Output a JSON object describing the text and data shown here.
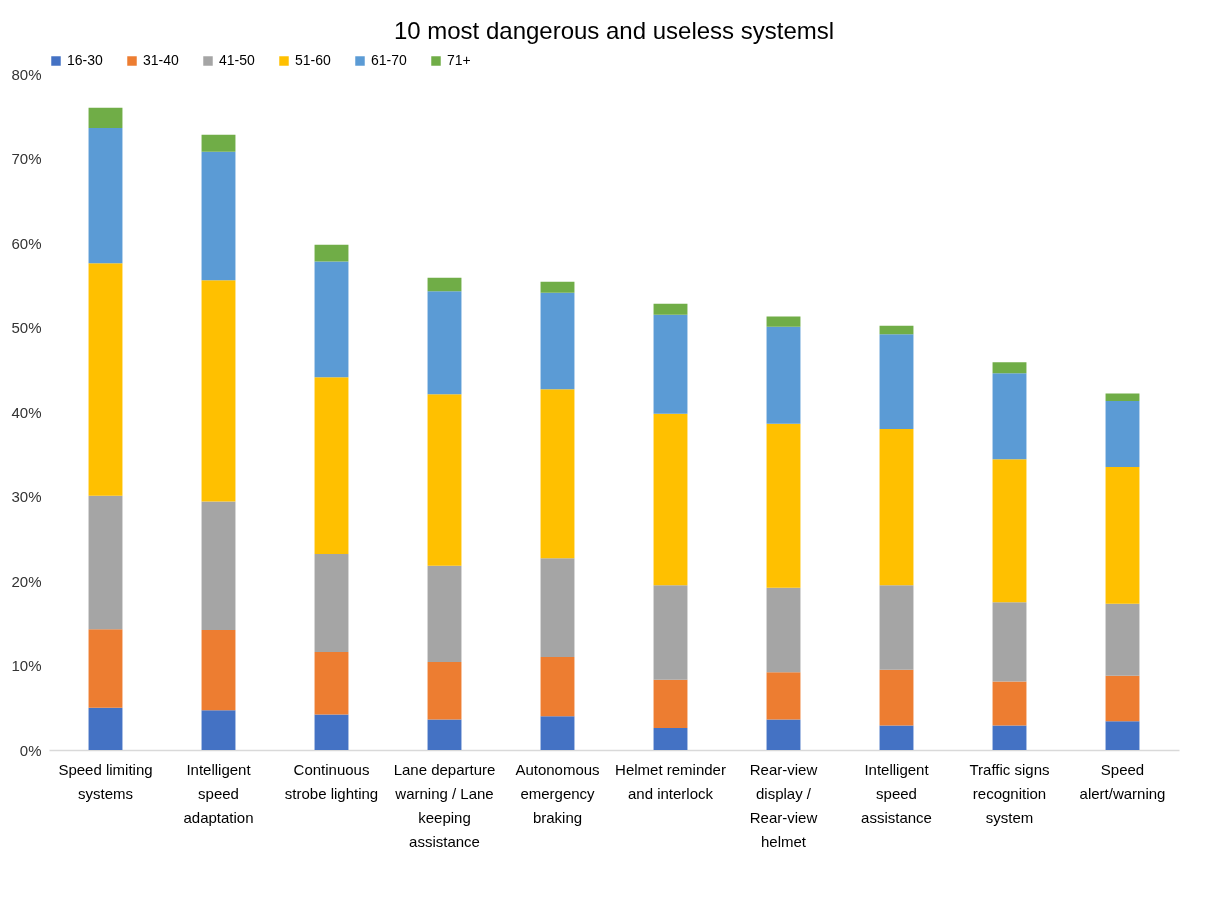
{
  "chart_data": {
    "type": "bar",
    "title": "10 most dangerous and useless systemsl",
    "stacked": true,
    "legend": "top",
    "grid": false,
    "categories": [
      "Speed limiting systems",
      "Intelligent speed adaptation",
      "Continuous strobe lighting",
      "Lane departure warning / Lane keeping assistance",
      "Autonomous emergency braking",
      "Helmet reminder and interlock",
      "Rear-view display / Rear-view helmet",
      "Intelligent speed assistance",
      "Traffic signs recognition system",
      "Speed alert/warning"
    ],
    "ylim": [
      0,
      80
    ],
    "yticks": [
      {
        "value": 0,
        "label": "0%"
      },
      {
        "value": 10,
        "label": "10%"
      },
      {
        "value": 20,
        "label": "20%"
      },
      {
        "value": 30,
        "label": "30%"
      },
      {
        "value": 40,
        "label": "40%"
      },
      {
        "value": 50,
        "label": "50%"
      },
      {
        "value": 60,
        "label": "60%"
      },
      {
        "value": 70,
        "label": "70%"
      },
      {
        "value": 80,
        "label": "80%"
      }
    ],
    "series": [
      {
        "name": "16-30",
        "color": "#4472c4",
        "values": [
          5.0,
          4.7,
          4.2,
          3.6,
          4.0,
          2.6,
          3.6,
          2.9,
          2.9,
          3.4
        ]
      },
      {
        "name": "31-40",
        "color": "#ed7d31",
        "values": [
          9.3,
          9.5,
          7.4,
          6.8,
          7.0,
          5.7,
          5.6,
          6.6,
          5.2,
          5.4
        ]
      },
      {
        "name": "41-50",
        "color": "#a5a5a5",
        "values": [
          15.8,
          15.2,
          11.6,
          11.4,
          11.7,
          11.2,
          10.0,
          10.0,
          9.4,
          8.5
        ]
      },
      {
        "name": "51-60",
        "color": "#ffc000",
        "values": [
          27.5,
          26.2,
          20.9,
          20.3,
          20.0,
          20.3,
          19.4,
          18.5,
          16.9,
          16.2
        ]
      },
      {
        "name": "61-70",
        "color": "#5b9bd5",
        "values": [
          16.0,
          15.2,
          13.7,
          12.2,
          11.4,
          11.7,
          11.5,
          11.2,
          10.2,
          7.8
        ]
      },
      {
        "name": "71+",
        "color": "#70ad47",
        "values": [
          2.4,
          2.0,
          2.0,
          1.6,
          1.3,
          1.3,
          1.2,
          1.0,
          1.3,
          0.9
        ]
      }
    ]
  }
}
